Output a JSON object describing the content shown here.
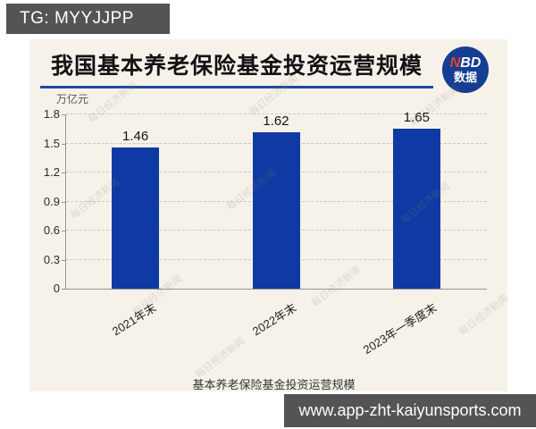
{
  "page": {
    "tg_badge": "TG: MYYJJPP",
    "url": "www.app-zht-kaiyunsports.com"
  },
  "header": {
    "title": "我国基本养老保险基金投资运营规模",
    "logo": {
      "n": "N",
      "bd": "BD",
      "sub": "数据"
    }
  },
  "watermark_text": "每日经济新闻",
  "colors": {
    "bar_blue": "#0f3aa3",
    "title_underline": "#1c4a9e",
    "logo_bg": "#153d91",
    "logo_n_red": "#e6432d",
    "badge_gray": "#545456",
    "card_bg": "#f6f2ea"
  },
  "chart_data": {
    "type": "bar",
    "title": "我国基本养老保险基金投资运营规模",
    "unit_label": "万亿元",
    "categories": [
      "2021年末",
      "2022年末",
      "2023年一季度末"
    ],
    "values": [
      1.46,
      1.62,
      1.65
    ],
    "value_labels": [
      "1.46",
      "1.62",
      "1.65"
    ],
    "ylim": [
      0,
      1.8
    ],
    "yticks": [
      0,
      0.3,
      0.6,
      0.9,
      1.2,
      1.5,
      1.8
    ],
    "ytick_labels": [
      "0",
      "0.3",
      "0.6",
      "0.9",
      "1.2",
      "1.5",
      "1.8"
    ],
    "grid": "horizontal-dashed",
    "bar_color": "#0f3aa3",
    "legend": {
      "label": "基本养老保险基金投资运营规模",
      "position": "bottom",
      "marker": "circle",
      "marker_color": "#0f3aa3"
    }
  }
}
